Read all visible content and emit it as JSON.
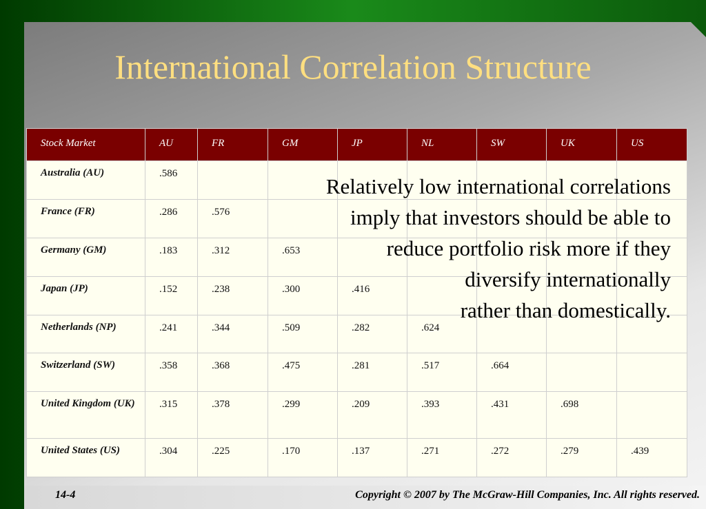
{
  "title": "International Correlation Structure",
  "table": {
    "header": [
      "Stock Market",
      "AU",
      "FR",
      "GM",
      "JP",
      "NL",
      "SW",
      "UK",
      "US"
    ],
    "rows": [
      [
        "Australia (AU)",
        ".586"
      ],
      [
        "France (FR)",
        ".286",
        ".576"
      ],
      [
        "Germany (GM)",
        ".183",
        ".312",
        ".653"
      ],
      [
        "Japan (JP)",
        ".152",
        ".238",
        ".300",
        ".416"
      ],
      [
        "Netherlands (NP)",
        ".241",
        ".344",
        ".509",
        ".282",
        ".624"
      ],
      [
        "Switzerland (SW)",
        ".358",
        ".368",
        ".475",
        ".281",
        ".517",
        ".664"
      ],
      [
        "United Kingdom (UK)",
        ".315",
        ".378",
        ".299",
        ".209",
        ".393",
        ".431",
        ".698"
      ],
      [
        "United States (US)",
        ".304",
        ".225",
        ".170",
        ".137",
        ".271",
        ".272",
        ".279",
        ".439"
      ]
    ]
  },
  "callout": [
    "Relatively low international correlations",
    "imply that investors should be able to",
    "reduce portfolio risk more if they",
    "diversify internationally",
    "rather than domestically."
  ],
  "footer": {
    "page": "14-4",
    "copyright": "Copyright © 2007 by The McGraw-Hill Companies, Inc.  All rights reserved."
  }
}
